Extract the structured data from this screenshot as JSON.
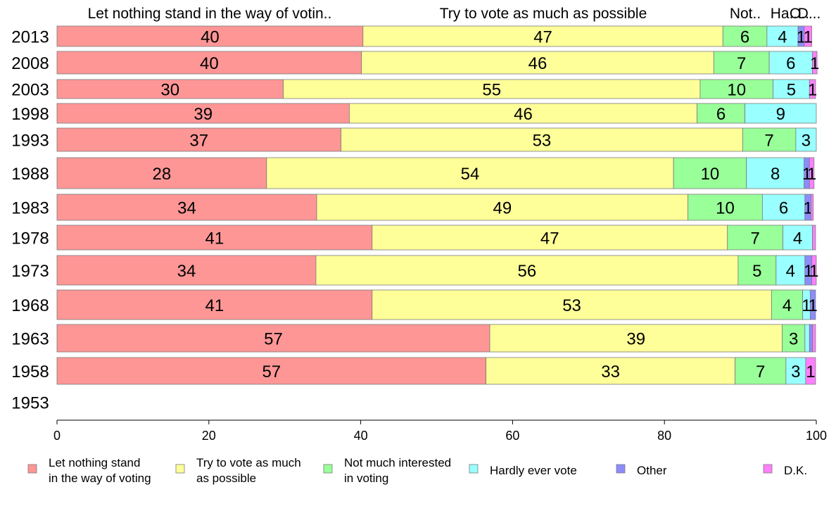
{
  "chart_data": {
    "type": "bar",
    "orientation": "horizontal",
    "stacked": true,
    "xlim": [
      0,
      100
    ],
    "x_ticks": [
      0,
      20,
      40,
      60,
      80,
      100
    ],
    "grid": false,
    "legend_position": "bottom",
    "column_headers": [
      "Let nothing stand in the way of votin..",
      "Try to vote as much as possible",
      "Not..",
      "Ha..",
      "O..",
      "D..."
    ],
    "categories": [
      "2013",
      "2008",
      "2003",
      "1998",
      "1993",
      "1988",
      "1983",
      "1978",
      "1973",
      "1968",
      "1963",
      "1958",
      "1953"
    ],
    "series": [
      {
        "name": "Let nothing stand in the way of voting",
        "legend": [
          "Let nothing stand",
          "in the way of voting"
        ],
        "color": "#ff9696",
        "values": [
          40.3,
          40.1,
          29.8,
          38.5,
          37.4,
          27.6,
          34.2,
          41.5,
          34.1,
          41.5,
          57.0,
          56.5,
          null
        ],
        "labels": [
          "40",
          "40",
          "30",
          "39",
          "37",
          "28",
          "34",
          "41",
          "34",
          "41",
          "57",
          "57",
          ""
        ]
      },
      {
        "name": "Try to vote as much as possible",
        "legend": [
          "Try to vote as much",
          "as possible"
        ],
        "color": "#ffff99",
        "values": [
          47.4,
          46.4,
          54.9,
          45.8,
          52.9,
          53.6,
          48.9,
          46.8,
          55.6,
          52.6,
          38.5,
          32.8,
          null
        ],
        "labels": [
          "47",
          "46",
          "55",
          "46",
          "53",
          "54",
          "49",
          "47",
          "56",
          "53",
          "39",
          "33",
          ""
        ]
      },
      {
        "name": "Not much interested in voting",
        "legend": [
          "Not much interested",
          "in voting"
        ],
        "color": "#99ff99",
        "values": [
          5.8,
          7.3,
          9.6,
          6.3,
          7.0,
          9.6,
          9.8,
          7.3,
          5.0,
          4.1,
          3.0,
          6.7,
          null
        ],
        "labels": [
          "6",
          "7",
          "10",
          "6",
          "7",
          "10",
          "10",
          "7",
          "5",
          "4",
          "3",
          "7",
          ""
        ]
      },
      {
        "name": "Hardly ever vote",
        "legend": [
          "Hardly ever vote"
        ],
        "color": "#99ffff",
        "values": [
          4.1,
          5.7,
          4.8,
          9.4,
          2.7,
          7.6,
          5.6,
          3.9,
          3.8,
          1.0,
          0.6,
          2.6,
          null
        ],
        "labels": [
          "4",
          "6",
          "5",
          "9",
          "3",
          "8",
          "6",
          "4",
          "4",
          "1",
          "",
          "3",
          ""
        ]
      },
      {
        "name": "Other",
        "legend": [
          "Other"
        ],
        "color": "#8c8cff",
        "values": [
          0.8,
          0.0,
          0.0,
          0.0,
          0.0,
          0.7,
          0.8,
          0.0,
          0.9,
          0.7,
          0.4,
          0.0,
          null
        ],
        "labels": [
          "1",
          "",
          "",
          "",
          "",
          "1",
          "1",
          "",
          "1",
          "1",
          "",
          "",
          ""
        ]
      },
      {
        "name": "D.K.",
        "legend": [
          "D.K."
        ],
        "color": "#ff80ff",
        "values": [
          1.0,
          0.6,
          0.8,
          0.0,
          0.0,
          0.6,
          0.3,
          0.4,
          0.6,
          0.0,
          0.4,
          1.3,
          null
        ],
        "labels": [
          "1",
          "1",
          "1",
          "",
          "",
          "1",
          "",
          "",
          "1",
          "",
          "",
          "1",
          ""
        ]
      }
    ]
  }
}
